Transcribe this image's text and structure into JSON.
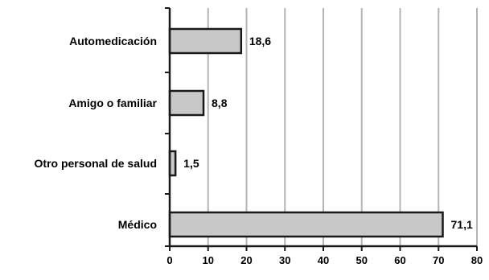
{
  "chart_data": {
    "type": "bar",
    "orientation": "horizontal",
    "categories": [
      "Automedicación",
      "Amigo o familiar",
      "Otro personal de salud",
      "Médico"
    ],
    "values": [
      18.6,
      8.8,
      1.5,
      71.1
    ],
    "value_labels": [
      "18,6",
      "8,8",
      "1,5",
      "71,1"
    ],
    "xlim": [
      0,
      80
    ],
    "x_ticks": [
      0,
      10,
      20,
      30,
      40,
      50,
      60,
      70,
      80
    ],
    "x_tick_labels": [
      "0",
      "10",
      "20",
      "30",
      "40",
      "50",
      "60",
      "70",
      "80"
    ],
    "grid": "vertical",
    "bar_color": "#c8c8c8",
    "bar_edge_color": "#1a1a1a",
    "grid_color": "#b4b4b4",
    "axis_color": "#1a1a1a"
  }
}
